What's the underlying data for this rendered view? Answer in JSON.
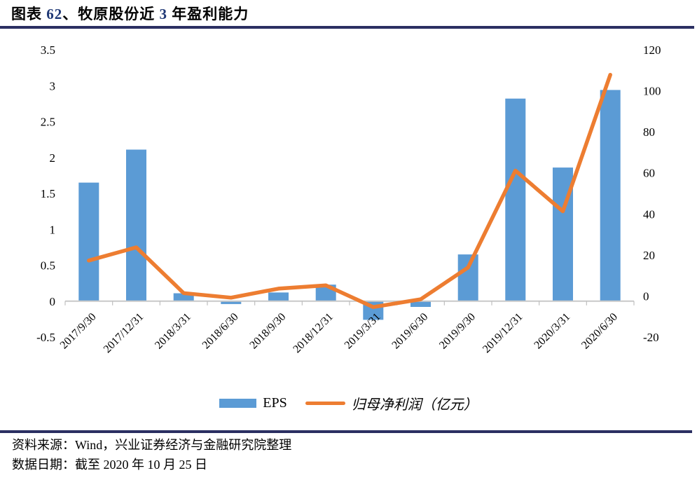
{
  "header": {
    "title_parts": [
      {
        "text": "图表 ",
        "color": "#000000"
      },
      {
        "text": "62",
        "color": "#1F3875"
      },
      {
        "text": "、牧原股份近 ",
        "color": "#000000"
      },
      {
        "text": "3",
        "color": "#1F3875"
      },
      {
        "text": " 年盈利能力",
        "color": "#000000"
      }
    ],
    "underline_color": "#2B2F62"
  },
  "chart_data": {
    "type": "combo",
    "categories": [
      "2017/9/30",
      "2017/12/31",
      "2018/3/31",
      "2018/6/30",
      "2018/9/30",
      "2018/12/31",
      "2019/3/31",
      "2019/6/30",
      "2019/9/30",
      "2019/12/31",
      "2020/3/31",
      "2020/6/30"
    ],
    "series": [
      {
        "name": "EPS",
        "type": "bar",
        "axis": "left",
        "color": "#5B9BD5",
        "values": [
          1.65,
          2.11,
          0.11,
          -0.04,
          0.12,
          0.23,
          -0.26,
          -0.08,
          0.65,
          2.82,
          1.86,
          2.94
        ]
      },
      {
        "name": "归母净利润（亿元）",
        "type": "line",
        "axis": "right",
        "color": "#ED7D31",
        "values": [
          17.3,
          23.7,
          1.4,
          -0.8,
          3.6,
          5.2,
          -5.4,
          -1.6,
          13.9,
          61.1,
          41.3,
          107.8
        ]
      }
    ],
    "left_axis": {
      "min": -0.5,
      "max": 3.5,
      "step": 0.5,
      "ticks": [
        "3.5",
        "3",
        "2.5",
        "2",
        "1.5",
        "1",
        "0.5",
        "0",
        "-0.5"
      ]
    },
    "right_axis": {
      "min": -20,
      "max": 120,
      "step": 20,
      "ticks": [
        "120",
        "100",
        "80",
        "60",
        "40",
        "20",
        "0",
        "-20"
      ]
    },
    "grid": "off",
    "legend_position": "bottom",
    "axis_line_color": "#C9C9C9",
    "tick_mark_color": "#BFBFBF"
  },
  "footer": {
    "source_line": "资料来源：Wind，兴业证券经济与金融研究院整理",
    "date_line": "数据日期：截至 2020 年 10 月 25 日",
    "rule_color": "#2B2F62"
  }
}
